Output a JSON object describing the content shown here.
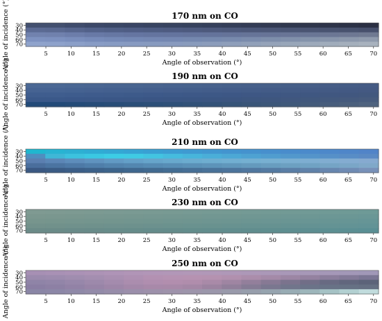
{
  "chart_data": [
    {
      "type": "heatmap",
      "title": "170 nm on CO",
      "xlabel": "Angle of observation (°)",
      "ylabel": "Angle of incidence (°)",
      "x_ticks": [
        5,
        10,
        15,
        20,
        25,
        30,
        35,
        40,
        45,
        50,
        55,
        60,
        65,
        70
      ],
      "y_ticks": [
        30,
        40,
        50,
        60,
        70
      ],
      "x_range": [
        1,
        71
      ],
      "y_range": [
        25,
        75
      ],
      "rows": [
        {
          "y": 30,
          "colors": [
            "#43506f",
            "#43506f",
            "#3f4c6c",
            "#3c4868",
            "#3a4766",
            "#394564",
            "#384461",
            "#37435f",
            "#36425d",
            "#35405b",
            "#343e58",
            "#333c55",
            "#323a52",
            "#30384e",
            "#2f364b",
            "#2e3449",
            "#2c3246",
            "#2b3043"
          ]
        },
        {
          "y": 40,
          "colors": [
            "#5b6a93",
            "#5a6991",
            "#56658d",
            "#526189",
            "#505f86",
            "#4f5d84",
            "#4e5c82",
            "#4e5b80",
            "#4d5a7e",
            "#4d597c",
            "#4c587a",
            "#4b5778",
            "#4b5676",
            "#4a5574",
            "#4a5472",
            "#495370",
            "#48526e",
            "#47506c"
          ]
        },
        {
          "y": 50,
          "colors": [
            "#7182ae",
            "#7081ad",
            "#6c7daa",
            "#6879a6",
            "#6677a3",
            "#6575a1",
            "#64749f",
            "#64749e",
            "#64739c",
            "#64739b",
            "#657399",
            "#667498",
            "#677497",
            "#697596",
            "#6a7695",
            "#6c7794",
            "#6e7893",
            "#707a92"
          ]
        },
        {
          "y": 60,
          "colors": [
            "#7e92c0",
            "#7d91bf",
            "#7a8ebc",
            "#778bb9",
            "#7589b6",
            "#7488b4",
            "#7487b2",
            "#7487b1",
            "#7588af",
            "#7689ae",
            "#788aad",
            "#7b8cac",
            "#7e8eab",
            "#8190ab",
            "#8493ab",
            "#8895ab",
            "#8c98ac",
            "#909bad"
          ]
        },
        {
          "y": 70,
          "colors": [
            "#8fa3cc",
            "#8ea2cb",
            "#8b9fc8",
            "#889cc5",
            "#879bc3",
            "#879ac1",
            "#879abf",
            "#889abe",
            "#899bbc",
            "#8b9cbb",
            "#8e9eba",
            "#91a0b9",
            "#95a3b9",
            "#98a6b9",
            "#9ca9ba",
            "#a0acbb",
            "#a4afbc",
            "#a8b2be"
          ]
        }
      ]
    },
    {
      "type": "heatmap",
      "title": "190 nm on CO",
      "xlabel": "Angle of observation (°)",
      "ylabel": "Angle of incidence (°)",
      "x_ticks": [
        5,
        10,
        15,
        20,
        25,
        30,
        35,
        40,
        45,
        50,
        55,
        60,
        65,
        70
      ],
      "y_ticks": [
        30,
        40,
        50,
        60,
        70
      ],
      "x_range": [
        1,
        71
      ],
      "y_range": [
        25,
        75
      ],
      "rows": [
        {
          "y": 30,
          "colors": [
            "#4b6894",
            "#4b6894",
            "#4a6793",
            "#4a6692",
            "#496591",
            "#496590",
            "#49648f",
            "#48638e",
            "#48638d",
            "#48628c",
            "#47618b",
            "#47608a",
            "#476089",
            "#465f88",
            "#465e87",
            "#465d86",
            "#455c85",
            "#455b84"
          ]
        },
        {
          "y": 40,
          "colors": [
            "#466392",
            "#466392",
            "#456291",
            "#456190",
            "#44608f",
            "#44608e",
            "#445f8d",
            "#445e8c",
            "#435e8b",
            "#435d8a",
            "#435c89",
            "#435c88",
            "#435b87",
            "#435b86",
            "#435a85",
            "#435a84",
            "#435983",
            "#445982"
          ]
        },
        {
          "y": 50,
          "colors": [
            "#3f5d8e",
            "#3f5d8e",
            "#3e5c8d",
            "#3e5b8c",
            "#3e5b8b",
            "#3d5a8a",
            "#3d5989",
            "#3d5988",
            "#3d5887",
            "#3d5886",
            "#3d5785",
            "#3e5784",
            "#3e5783",
            "#3f5782",
            "#3f5781",
            "#405780",
            "#41577f",
            "#42587e"
          ]
        },
        {
          "y": 60,
          "colors": [
            "#3a5889",
            "#3a5889",
            "#3a5788",
            "#3a5787",
            "#3a5686",
            "#3a5685",
            "#3a5584",
            "#3a5583",
            "#3a5582",
            "#3b5581",
            "#3c5580",
            "#3d567f",
            "#3e567e",
            "#40577e",
            "#41587d",
            "#43597d",
            "#455a7d",
            "#475b7d"
          ]
        },
        {
          "y": 70,
          "colors": [
            "#224a78",
            "#224a78",
            "#244b78",
            "#264c78",
            "#284d78",
            "#2a4e78",
            "#2c4f78",
            "#2e5078",
            "#315178",
            "#335278",
            "#365478",
            "#395578",
            "#3c5779",
            "#3f597a",
            "#435b7b",
            "#475d7c",
            "#4b607d",
            "#4f637f"
          ]
        }
      ]
    },
    {
      "type": "heatmap",
      "title": "210 nm on CO",
      "xlabel": "Angle of observation (°)",
      "ylabel": "Angle of incidence (°)",
      "x_ticks": [
        5,
        10,
        15,
        20,
        25,
        30,
        35,
        40,
        45,
        50,
        55,
        60,
        65,
        70
      ],
      "y_ticks": [
        30,
        40,
        50,
        60,
        70
      ],
      "x_range": [
        1,
        71
      ],
      "y_range": [
        25,
        75
      ],
      "rows": [
        {
          "y": 30,
          "colors": [
            "#1fb7cf",
            "#27b4d2",
            "#2cb0d3",
            "#2facd4",
            "#33a8d4",
            "#36a4d4",
            "#39a0d3",
            "#3c9dd2",
            "#3f9ad1",
            "#4197d0",
            "#4394cf",
            "#4592ce",
            "#478fcd",
            "#498ccc",
            "#4b8acb",
            "#4d88ca",
            "#4f86c9",
            "#5184c8"
          ]
        },
        {
          "y": 40,
          "colors": [
            "#4f8ebf",
            "#3fb7d6",
            "#3cc2de",
            "#3ac8e2",
            "#3ccde5",
            "#3fcbe4",
            "#42c4e1",
            "#45bcde",
            "#47b5db",
            "#4aaed8",
            "#4ca8d5",
            "#4ea2d2",
            "#509dcf",
            "#5298cc",
            "#5494ca",
            "#5690c8",
            "#588dc6",
            "#5a8ac4"
          ]
        },
        {
          "y": 50,
          "colors": [
            "#5b7fb0",
            "#5c86b6",
            "#5e8dbb",
            "#6093bf",
            "#629ac4",
            "#64a0c8",
            "#67a5cb",
            "#69a9cd",
            "#6caccf",
            "#6faed0",
            "#72afd1",
            "#75b0d1",
            "#78b0d1",
            "#7bafd1",
            "#7eaed1",
            "#81add1",
            "#84acd1",
            "#86aad0"
          ]
        },
        {
          "y": 60,
          "colors": [
            "#4a6e9c",
            "#4b74a1",
            "#4d79a6",
            "#4f7eaa",
            "#5183ad",
            "#5387b0",
            "#558bb3",
            "#578eb5",
            "#5a91b7",
            "#5d94b9",
            "#6097bb",
            "#649abd",
            "#689dbf",
            "#6ca0c1",
            "#70a2c3",
            "#75a4c5",
            "#7aa6c7",
            "#80a8c9"
          ]
        },
        {
          "y": 70,
          "colors": [
            "#3a5882",
            "#3a5b84",
            "#3b5e87",
            "#3c6189",
            "#3d648b",
            "#3f678e",
            "#416a90",
            "#436d93",
            "#466f96",
            "#497299",
            "#4c749c",
            "#50779f",
            "#547aa2",
            "#5a7ea6",
            "#6082aa",
            "#6786af",
            "#6f8bb4",
            "#7891b9"
          ]
        }
      ]
    },
    {
      "type": "heatmap",
      "title": "230 nm on CO",
      "xlabel": "Angle of observation (°)",
      "ylabel": "Angle of incidence (°)",
      "x_ticks": [
        5,
        10,
        15,
        20,
        25,
        30,
        35,
        40,
        45,
        50,
        55,
        60,
        65,
        70
      ],
      "y_ticks": [
        30,
        40,
        50,
        60,
        70
      ],
      "x_range": [
        1,
        71
      ],
      "y_range": [
        25,
        75
      ],
      "rows": [
        {
          "y": 30,
          "colors": [
            "#7f9a92",
            "#7e9a92",
            "#7d9a92",
            "#7c9a92",
            "#7b9a93",
            "#7a9a93",
            "#799a93",
            "#789a93",
            "#779a94",
            "#769a94",
            "#759a94",
            "#749a95",
            "#739a95",
            "#729a95",
            "#719a96",
            "#709a96",
            "#6f9a96",
            "#6e9a97"
          ]
        },
        {
          "y": 40,
          "colors": [
            "#7b978f",
            "#7a978f",
            "#79978f",
            "#789790",
            "#779790",
            "#769790",
            "#759791",
            "#749791",
            "#739791",
            "#729792",
            "#719792",
            "#709793",
            "#6f9793",
            "#6e9794",
            "#6d9794",
            "#6c9795",
            "#6b9795",
            "#6a9796"
          ]
        },
        {
          "y": 50,
          "colors": [
            "#77958d",
            "#76958d",
            "#75958e",
            "#74958e",
            "#73958e",
            "#72958f",
            "#71958f",
            "#709590",
            "#6f9590",
            "#6e9591",
            "#6d9591",
            "#6c9592",
            "#6b9593",
            "#6a9593",
            "#699594",
            "#689594",
            "#679595",
            "#669596"
          ]
        },
        {
          "y": 60,
          "colors": [
            "#72918b",
            "#71918b",
            "#70918c",
            "#6f918c",
            "#6e918d",
            "#6d918d",
            "#6c918e",
            "#6b928e",
            "#6a928f",
            "#69928f",
            "#689290",
            "#679291",
            "#669291",
            "#659292",
            "#649293",
            "#649394",
            "#639395",
            "#629396"
          ]
        },
        {
          "y": 70,
          "colors": [
            "#6b8b88",
            "#6a8b88",
            "#698b89",
            "#688b89",
            "#678c8a",
            "#668c8a",
            "#658c8b",
            "#648c8b",
            "#638d8c",
            "#628d8d",
            "#618d8e",
            "#608d8e",
            "#5f8e8f",
            "#5e8e90",
            "#5d8e91",
            "#5c8f92",
            "#5b8f93",
            "#5a8f94"
          ]
        }
      ]
    },
    {
      "type": "heatmap",
      "title": "250 nm on CO",
      "xlabel": "Angle of observation (°)",
      "ylabel": "Angle of incidence (°)",
      "x_ticks": [
        5,
        10,
        15,
        20,
        25,
        30,
        35,
        40,
        45,
        50,
        55,
        60,
        65,
        70
      ],
      "y_ticks": [
        30,
        40,
        50,
        60,
        70
      ],
      "x_range": [
        1,
        71
      ],
      "y_range": [
        25,
        75
      ],
      "rows": [
        {
          "y": 30,
          "colors": [
            "#a790b4",
            "#a991b5",
            "#ab92b6",
            "#ad93b6",
            "#af94b7",
            "#b195b7",
            "#b296b8",
            "#b297b8",
            "#b298b8",
            "#b198b8",
            "#af98b8",
            "#ad98b8",
            "#ab98b8",
            "#a998b8",
            "#a798b8",
            "#a598b8",
            "#a398b8",
            "#a198b8"
          ]
        },
        {
          "y": 40,
          "colors": [
            "#9b8aad",
            "#9d8bae",
            "#a08daf",
            "#a48eb0",
            "#a98fb1",
            "#ae90b2",
            "#b391b2",
            "#b592b2",
            "#b692b1",
            "#b592b0",
            "#b190ae",
            "#ab8dab",
            "#a48aa8",
            "#9c86a4",
            "#9482a0",
            "#8b7e9c",
            "#837a98",
            "#7b7694"
          ]
        },
        {
          "y": 50,
          "colors": [
            "#8f84a7",
            "#9285a8",
            "#9787aa",
            "#9d89ab",
            "#a48bad",
            "#ab8dae",
            "#b08eaf",
            "#b28eae",
            "#b08dac",
            "#a98aa8",
            "#9f85a2",
            "#937f9b",
            "#877994",
            "#7b738d",
            "#716e87",
            "#686a82",
            "#61667d",
            "#5c6379"
          ]
        },
        {
          "y": 60,
          "colors": [
            "#8a7ea3",
            "#8d80a4",
            "#9282a6",
            "#9884a7",
            "#9e86a8",
            "#a488a9",
            "#a889a9",
            "#a889a8",
            "#a487a5",
            "#9c83a0",
            "#917f9a",
            "#857b94",
            "#7a778f",
            "#71758b",
            "#6b7388",
            "#687286",
            "#667184",
            "#656f82"
          ]
        },
        {
          "y": 70,
          "colors": [
            "#8a86a6",
            "#8c87a7",
            "#8f89a8",
            "#938ba9",
            "#978daa",
            "#9b8fab",
            "#9d91ab",
            "#9e93ab",
            "#9d95ab",
            "#9b97ab",
            "#999aab",
            "#979eac",
            "#96a4af",
            "#98acb4",
            "#9db6bb",
            "#a5c2c5",
            "#b2d0d1",
            "#c1dcdd"
          ]
        }
      ]
    }
  ]
}
